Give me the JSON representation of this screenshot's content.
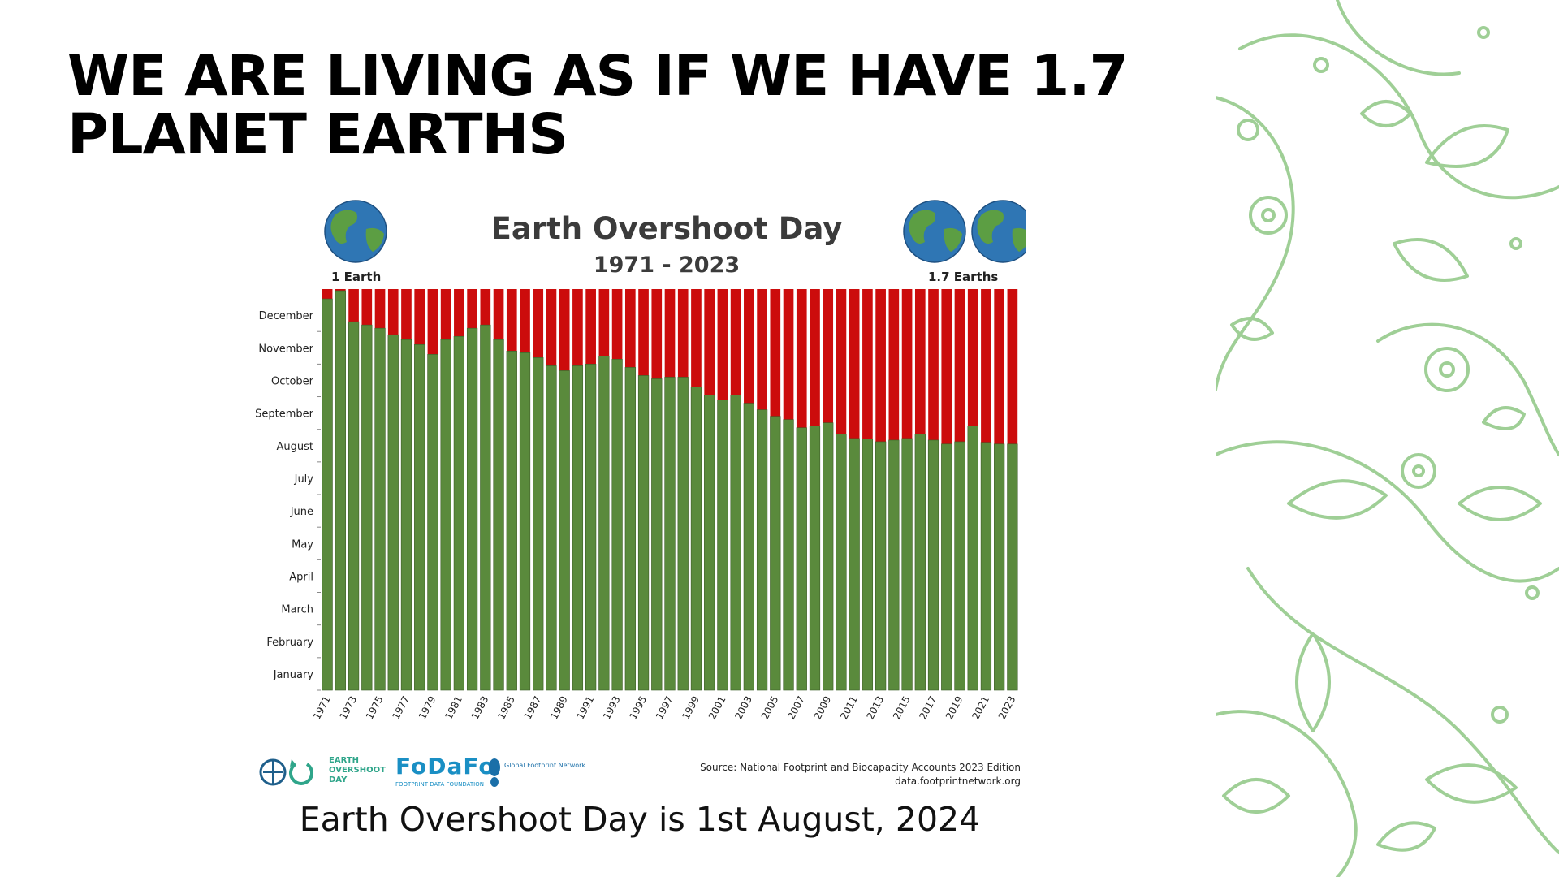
{
  "slide": {
    "title": "WE ARE LIVING AS IF WE HAVE 1.7 PLANET EARTHS",
    "caption": "Earth Overshoot Day is 1st August, 2024"
  },
  "figure": {
    "left_label": "1 Earth",
    "right_label": "1.7 Earths",
    "source_line1": "Source: National Footprint and Biocapacity Accounts 2023 Edition",
    "source_line2": "data.footprintnetwork.org",
    "logos": {
      "earth_overshoot_day": "EARTH OVERSHOOT DAY",
      "fodafo": "FoDaFo",
      "fodafo_sub": "FOOTPRINT DATA FOUNDATION",
      "gfn": "Global Footprint Network"
    }
  },
  "colors": {
    "overshoot": "#cc0c0c",
    "within_budget": "#5a8a3c",
    "decoration": "#9fcf96"
  },
  "chart_data": {
    "type": "bar",
    "title": "Earth Overshoot Day",
    "subtitle": "1971 - 2023",
    "xlabel": "",
    "ylabel": "",
    "y_unit": "month",
    "ylim": [
      0,
      12.3
    ],
    "y_tick_labels": [
      "January",
      "February",
      "March",
      "April",
      "May",
      "June",
      "July",
      "August",
      "September",
      "October",
      "November",
      "December"
    ],
    "x_tick_labels": [
      "1971",
      "1973",
      "1975",
      "1977",
      "1979",
      "1981",
      "1983",
      "1985",
      "1987",
      "1989",
      "1991",
      "1993",
      "1995",
      "1997",
      "1999",
      "2001",
      "2003",
      "2005",
      "2007",
      "2009",
      "2011",
      "2013",
      "2015",
      "2017",
      "2019",
      "2021",
      "2023"
    ],
    "categories": [
      "1971",
      "1972",
      "1973",
      "1974",
      "1975",
      "1976",
      "1977",
      "1978",
      "1979",
      "1980",
      "1981",
      "1982",
      "1983",
      "1984",
      "1985",
      "1986",
      "1987",
      "1988",
      "1989",
      "1990",
      "1991",
      "1992",
      "1993",
      "1994",
      "1995",
      "1996",
      "1997",
      "1998",
      "1999",
      "2000",
      "2001",
      "2002",
      "2003",
      "2004",
      "2005",
      "2006",
      "2007",
      "2008",
      "2009",
      "2010",
      "2011",
      "2012",
      "2013",
      "2014",
      "2015",
      "2016",
      "2017",
      "2018",
      "2019",
      "2020",
      "2021",
      "2022",
      "2023"
    ],
    "series": [
      {
        "values": [
          12.0,
          12.25,
          11.3,
          11.2,
          11.1,
          10.9,
          10.75,
          10.6,
          10.3,
          10.75,
          10.85,
          11.1,
          11.2,
          10.75,
          10.4,
          10.35,
          10.2,
          9.95,
          9.8,
          9.95,
          10.0,
          10.25,
          10.15,
          9.9,
          9.65,
          9.55,
          9.6,
          9.6,
          9.3,
          9.05,
          8.9,
          9.05,
          8.8,
          8.6,
          8.4,
          8.3,
          8.05,
          8.1,
          8.2,
          7.85,
          7.72,
          7.7,
          7.62,
          7.67,
          7.72,
          7.85,
          7.67,
          7.55,
          7.62,
          8.1,
          7.6,
          7.55,
          7.55
        ]
      }
    ],
    "grid": false,
    "legend": "none"
  }
}
